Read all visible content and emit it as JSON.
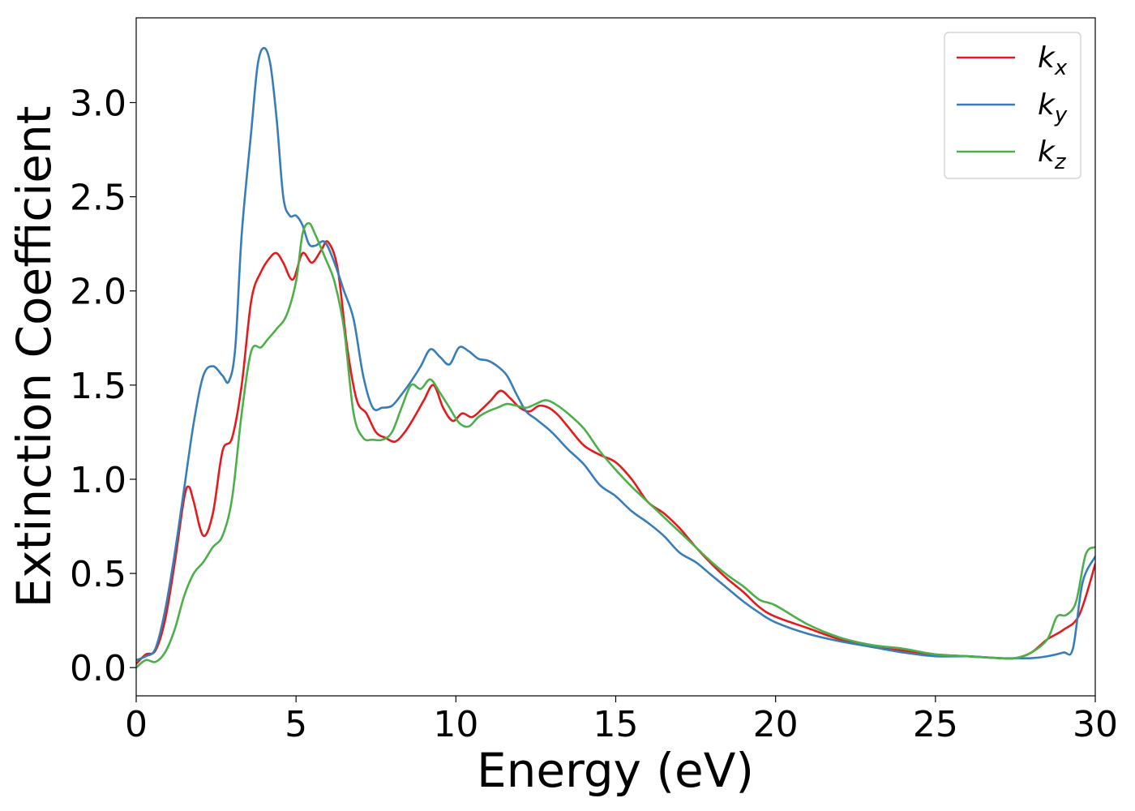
{
  "chart_data": {
    "type": "line",
    "xlabel": "Energy (eV)",
    "ylabel": "Extinction Coefficient",
    "xlim": [
      0,
      30
    ],
    "ylim": [
      -0.15,
      3.45
    ],
    "xticks": [
      0,
      5,
      10,
      15,
      20,
      25,
      30
    ],
    "xtick_labels": [
      "0",
      "5",
      "10",
      "15",
      "20",
      "25",
      "30"
    ],
    "yticks": [
      0.0,
      0.5,
      1.0,
      1.5,
      2.0,
      2.5,
      3.0
    ],
    "ytick_labels": [
      "0.0",
      "0.5",
      "1.0",
      "1.5",
      "2.0",
      "2.5",
      "3.0"
    ],
    "grid": false,
    "legend_position": "top-right",
    "series": [
      {
        "name": "k",
        "subscript": "x",
        "color": "#e41a1c",
        "x": [
          0,
          0.3,
          0.6,
          0.9,
          1.2,
          1.5,
          1.65,
          1.8,
          2.1,
          2.4,
          2.7,
          3.0,
          3.3,
          3.6,
          3.9,
          4.2,
          4.4,
          4.6,
          4.9,
          5.2,
          5.5,
          5.8,
          6.0,
          6.3,
          6.6,
          6.9,
          7.2,
          7.5,
          7.8,
          8.1,
          8.4,
          8.7,
          9.0,
          9.3,
          9.6,
          9.9,
          10.2,
          10.5,
          10.8,
          11.1,
          11.4,
          11.7,
          12.0,
          12.3,
          12.6,
          12.9,
          13.2,
          13.5,
          14.0,
          14.5,
          15.0,
          15.5,
          16.0,
          16.5,
          17.0,
          17.5,
          18.0,
          18.5,
          19.0,
          19.5,
          20.0,
          21.0,
          22.0,
          23.0,
          24.0,
          25.0,
          26.0,
          27.0,
          27.5,
          28.0,
          28.5,
          29.0,
          29.5,
          30.0
        ],
        "y": [
          0.02,
          0.07,
          0.09,
          0.25,
          0.55,
          0.9,
          0.96,
          0.88,
          0.7,
          0.82,
          1.15,
          1.22,
          1.5,
          1.95,
          2.1,
          2.18,
          2.2,
          2.15,
          2.06,
          2.2,
          2.15,
          2.22,
          2.26,
          2.12,
          1.7,
          1.42,
          1.35,
          1.25,
          1.22,
          1.2,
          1.25,
          1.33,
          1.42,
          1.5,
          1.38,
          1.31,
          1.35,
          1.33,
          1.37,
          1.42,
          1.47,
          1.43,
          1.38,
          1.36,
          1.39,
          1.38,
          1.34,
          1.28,
          1.18,
          1.13,
          1.09,
          1.0,
          0.88,
          0.82,
          0.74,
          0.64,
          0.55,
          0.47,
          0.4,
          0.32,
          0.27,
          0.21,
          0.15,
          0.11,
          0.09,
          0.07,
          0.06,
          0.05,
          0.05,
          0.08,
          0.15,
          0.2,
          0.28,
          0.55
        ]
      },
      {
        "name": "k",
        "subscript": "y",
        "color": "#377eb8",
        "x": [
          0,
          0.3,
          0.6,
          0.9,
          1.2,
          1.5,
          1.8,
          2.1,
          2.4,
          2.7,
          2.9,
          3.1,
          3.3,
          3.6,
          3.8,
          4.0,
          4.2,
          4.4,
          4.6,
          4.8,
          5.0,
          5.2,
          5.4,
          5.6,
          5.9,
          6.2,
          6.5,
          6.8,
          7.1,
          7.4,
          7.7,
          8.0,
          8.3,
          8.6,
          8.9,
          9.2,
          9.5,
          9.8,
          10.1,
          10.4,
          10.7,
          11.0,
          11.3,
          11.6,
          11.9,
          12.2,
          12.5,
          13.0,
          13.5,
          14.0,
          14.5,
          15.0,
          15.5,
          16.0,
          16.5,
          17.0,
          17.5,
          18.0,
          18.5,
          19.0,
          19.5,
          20.0,
          21.0,
          22.0,
          23.0,
          24.0,
          25.0,
          26.0,
          27.0,
          27.5,
          28.0,
          28.5,
          29.0,
          29.3,
          29.6,
          30.0
        ],
        "y": [
          0.04,
          0.06,
          0.1,
          0.3,
          0.6,
          0.95,
          1.3,
          1.55,
          1.6,
          1.55,
          1.52,
          1.7,
          2.3,
          2.85,
          3.2,
          3.29,
          3.2,
          2.9,
          2.5,
          2.4,
          2.4,
          2.35,
          2.25,
          2.24,
          2.26,
          2.15,
          2.0,
          1.85,
          1.55,
          1.38,
          1.38,
          1.39,
          1.45,
          1.52,
          1.6,
          1.69,
          1.65,
          1.61,
          1.7,
          1.68,
          1.64,
          1.63,
          1.6,
          1.55,
          1.45,
          1.36,
          1.32,
          1.25,
          1.16,
          1.08,
          0.97,
          0.91,
          0.83,
          0.77,
          0.7,
          0.61,
          0.56,
          0.49,
          0.42,
          0.35,
          0.29,
          0.24,
          0.18,
          0.14,
          0.11,
          0.08,
          0.06,
          0.06,
          0.05,
          0.05,
          0.05,
          0.06,
          0.08,
          0.1,
          0.45,
          0.59
        ]
      },
      {
        "name": "k",
        "subscript": "z",
        "color": "#4daf4a",
        "x": [
          0,
          0.3,
          0.6,
          0.9,
          1.2,
          1.5,
          1.8,
          2.1,
          2.4,
          2.7,
          3.0,
          3.3,
          3.6,
          3.9,
          4.1,
          4.4,
          4.7,
          5.0,
          5.2,
          5.4,
          5.6,
          5.9,
          6.2,
          6.5,
          6.8,
          7.1,
          7.4,
          7.7,
          8.0,
          8.3,
          8.6,
          8.9,
          9.2,
          9.5,
          9.8,
          10.1,
          10.4,
          10.7,
          11.0,
          11.3,
          11.6,
          11.9,
          12.2,
          12.5,
          12.8,
          13.1,
          13.5,
          14.0,
          14.5,
          15.0,
          15.5,
          16.0,
          16.5,
          17.0,
          17.5,
          18.0,
          18.5,
          19.0,
          19.5,
          20.0,
          21.0,
          22.0,
          23.0,
          24.0,
          25.0,
          26.0,
          27.0,
          27.5,
          28.0,
          28.5,
          28.8,
          29.1,
          29.4,
          29.7,
          30.0
        ],
        "y": [
          0.0,
          0.04,
          0.03,
          0.08,
          0.2,
          0.38,
          0.5,
          0.56,
          0.64,
          0.7,
          0.9,
          1.35,
          1.68,
          1.7,
          1.74,
          1.8,
          1.87,
          2.05,
          2.3,
          2.36,
          2.3,
          2.18,
          2.05,
          1.8,
          1.35,
          1.22,
          1.21,
          1.21,
          1.25,
          1.38,
          1.5,
          1.48,
          1.53,
          1.46,
          1.38,
          1.3,
          1.28,
          1.33,
          1.36,
          1.38,
          1.4,
          1.39,
          1.38,
          1.4,
          1.42,
          1.4,
          1.35,
          1.27,
          1.15,
          1.05,
          0.96,
          0.88,
          0.8,
          0.72,
          0.64,
          0.56,
          0.49,
          0.43,
          0.36,
          0.33,
          0.23,
          0.16,
          0.12,
          0.1,
          0.07,
          0.06,
          0.05,
          0.05,
          0.08,
          0.15,
          0.27,
          0.28,
          0.35,
          0.6,
          0.64
        ]
      }
    ]
  }
}
